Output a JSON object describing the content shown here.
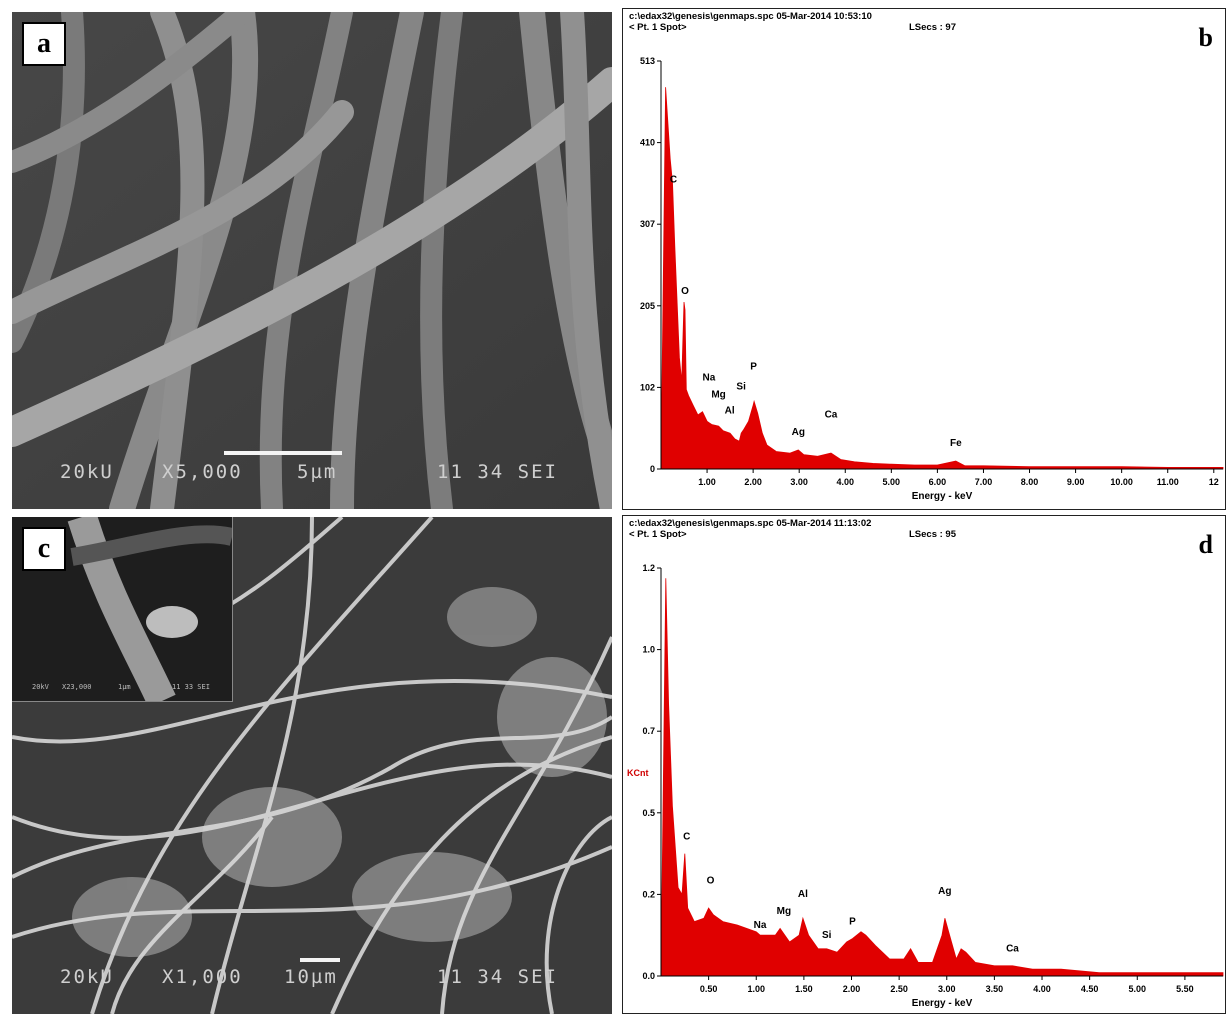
{
  "panels": {
    "a": {
      "label": "a",
      "sem_bar": {
        "voltage": "20kU",
        "magnification": "X5,000",
        "scale": "5µm",
        "code": "11 34 SEI"
      }
    },
    "b": {
      "label": "b",
      "header_line1": "c:\\edax32\\genesis\\genmaps.spc  05-Mar-2014 10:53:10",
      "header_line2": "< Pt.  1 Spot>",
      "lsecs": "LSecs : 97"
    },
    "c": {
      "label": "c",
      "sem_bar": {
        "voltage": "20kU",
        "magnification": "X1,000",
        "scale": "10µm",
        "code": "11 34 SEI"
      },
      "inset_bar": {
        "voltage": "20kV",
        "magnification": "X23,000",
        "scale": "1µm",
        "code": "11 33 SEI"
      }
    },
    "d": {
      "label": "d",
      "header_line1": "c:\\edax32\\genesis\\genmaps.spc  05-Mar-2014 11:13:02",
      "header_line2": "< Pt.  1 Spot>",
      "lsecs": "LSecs : 95"
    }
  },
  "chart_data": [
    {
      "id": "b",
      "type": "area",
      "title": "",
      "xlabel": "Energy - keV",
      "ylabel": "",
      "xlim": [
        0,
        12.2
      ],
      "ylim": [
        0,
        513
      ],
      "x_ticks": [
        "1.00",
        "2.00",
        "3.00",
        "4.00",
        "5.00",
        "6.00",
        "7.00",
        "8.00",
        "9.00",
        "10.00",
        "11.00",
        "12"
      ],
      "y_ticks": [
        "513",
        "410",
        "307",
        "205",
        "102",
        "0"
      ],
      "color": "#e00000",
      "x": [
        0.0,
        0.1,
        0.2,
        0.25,
        0.3,
        0.4,
        0.45,
        0.5,
        0.52,
        0.55,
        0.6,
        0.7,
        0.8,
        0.9,
        1.0,
        1.05,
        1.1,
        1.25,
        1.35,
        1.45,
        1.5,
        1.6,
        1.7,
        1.74,
        1.8,
        1.9,
        2.0,
        2.02,
        2.1,
        2.2,
        2.3,
        2.5,
        2.8,
        2.98,
        3.1,
        3.4,
        3.69,
        3.9,
        4.2,
        4.6,
        5.0,
        5.5,
        6.0,
        6.4,
        6.6,
        7.0,
        8.0,
        9.0,
        10.0,
        11.0,
        12.2
      ],
      "y": [
        0,
        480,
        390,
        360,
        280,
        140,
        110,
        210,
        200,
        100,
        92,
        80,
        68,
        72,
        60,
        58,
        56,
        54,
        48,
        46,
        45,
        38,
        35,
        45,
        50,
        60,
        80,
        85,
        70,
        45,
        30,
        22,
        20,
        24,
        18,
        16,
        20,
        12,
        9,
        7,
        6,
        5,
        5,
        10,
        4,
        4,
        3,
        3,
        3,
        2,
        2
      ],
      "peaks": [
        {
          "label": "C",
          "x": 0.27,
          "y": 355
        },
        {
          "label": "O",
          "x": 0.52,
          "y": 215
        },
        {
          "label": "Na",
          "x": 1.04,
          "y": 106
        },
        {
          "label": "Mg",
          "x": 1.25,
          "y": 85
        },
        {
          "label": "Al",
          "x": 1.49,
          "y": 65
        },
        {
          "label": "Si",
          "x": 1.74,
          "y": 95
        },
        {
          "label": "P",
          "x": 2.01,
          "y": 120
        },
        {
          "label": "Ag",
          "x": 2.98,
          "y": 38
        },
        {
          "label": "Ca",
          "x": 3.69,
          "y": 60
        },
        {
          "label": "Fe",
          "x": 6.4,
          "y": 24
        }
      ]
    },
    {
      "id": "d",
      "type": "area",
      "title": "",
      "xlabel": "Energy - keV",
      "ylabel": "KCnt",
      "xlim": [
        0,
        5.9
      ],
      "ylim": [
        0,
        1.2
      ],
      "x_ticks": [
        "0.50",
        "1.00",
        "1.50",
        "2.00",
        "2.50",
        "3.00",
        "3.50",
        "4.00",
        "4.50",
        "5.00",
        "5.50"
      ],
      "y_ticks": [
        "1.2",
        "1.0",
        "0.7",
        "0.5",
        "0.2",
        "0.0"
      ],
      "color": "#e00000",
      "x": [
        0.0,
        0.05,
        0.08,
        0.12,
        0.18,
        0.22,
        0.25,
        0.28,
        0.35,
        0.45,
        0.5,
        0.55,
        0.65,
        0.8,
        1.0,
        1.04,
        1.2,
        1.25,
        1.35,
        1.45,
        1.49,
        1.55,
        1.65,
        1.74,
        1.85,
        1.95,
        2.01,
        2.1,
        2.15,
        2.25,
        2.4,
        2.55,
        2.62,
        2.7,
        2.85,
        2.95,
        2.98,
        3.05,
        3.1,
        3.15,
        3.2,
        3.3,
        3.5,
        3.69,
        3.9,
        4.2,
        4.6,
        5.0,
        5.5,
        5.9
      ],
      "y": [
        0,
        1.17,
        0.8,
        0.5,
        0.26,
        0.24,
        0.36,
        0.2,
        0.16,
        0.17,
        0.2,
        0.18,
        0.16,
        0.15,
        0.13,
        0.12,
        0.12,
        0.14,
        0.1,
        0.12,
        0.17,
        0.12,
        0.08,
        0.08,
        0.07,
        0.1,
        0.11,
        0.13,
        0.12,
        0.09,
        0.05,
        0.05,
        0.08,
        0.04,
        0.04,
        0.12,
        0.17,
        0.1,
        0.05,
        0.08,
        0.07,
        0.04,
        0.03,
        0.03,
        0.02,
        0.02,
        0.01,
        0.01,
        0.01,
        0.01
      ],
      "peaks": [
        {
          "label": "C",
          "x": 0.27,
          "y": 0.39
        },
        {
          "label": "O",
          "x": 0.52,
          "y": 0.26
        },
        {
          "label": "Na",
          "x": 1.04,
          "y": 0.13
        },
        {
          "label": "Mg",
          "x": 1.29,
          "y": 0.17
        },
        {
          "label": "Al",
          "x": 1.49,
          "y": 0.22
        },
        {
          "label": "Si",
          "x": 1.74,
          "y": 0.1
        },
        {
          "label": "P",
          "x": 2.01,
          "y": 0.14
        },
        {
          "label": "Ag",
          "x": 2.98,
          "y": 0.23
        },
        {
          "label": "Ca",
          "x": 3.69,
          "y": 0.06
        }
      ]
    }
  ]
}
